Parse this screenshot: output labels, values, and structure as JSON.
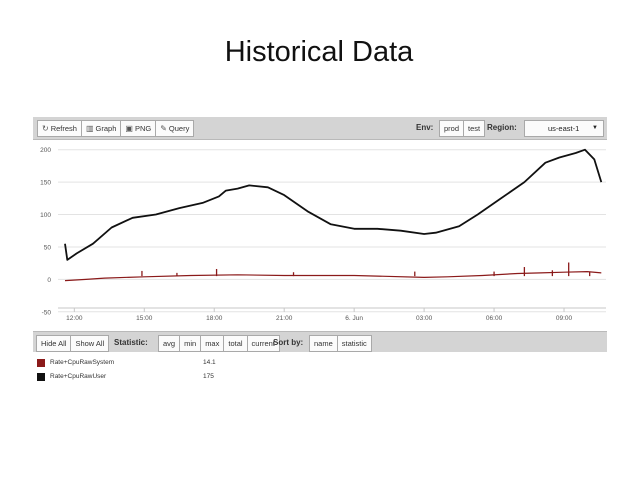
{
  "slide": {
    "title": "Historical Data"
  },
  "toolbar": {
    "refresh_label": "Refresh",
    "graph_label": "Graph",
    "png_label": "PNG",
    "query_label": "Query",
    "env_label": "Env:",
    "env_options": [
      "prod",
      "test"
    ],
    "region_label": "Region:",
    "region_value": "us-east-1"
  },
  "bottombar": {
    "hide_all": "Hide All",
    "show_all": "Show All",
    "statistic_label": "Statistic:",
    "statistic_options": [
      "avg",
      "min",
      "max",
      "total",
      "current"
    ],
    "sortby_label": "Sort by:",
    "sort_options": [
      "name",
      "statistic"
    ]
  },
  "legend": [
    {
      "name": "Rate+CpuRawSystem",
      "value": "14.1",
      "color": "#8b1a1a"
    },
    {
      "name": "Rate+CpuRawUser",
      "value": "175",
      "color": "#111111"
    }
  ],
  "chart_data": {
    "type": "line",
    "title": "",
    "xlabel": "",
    "ylabel": "",
    "x_ticks": [
      "12:00",
      "15:00",
      "18:00",
      "21:00",
      "6. Jun",
      "03:00",
      "06:00",
      "09:00"
    ],
    "x_tick_hours": [
      12,
      15,
      18,
      21,
      24,
      27,
      30,
      33
    ],
    "xlim_hours": [
      11.3,
      34.8
    ],
    "y_ticks": [
      "200",
      "150",
      "100",
      "50",
      "0",
      "-50"
    ],
    "ylim": [
      -55,
      215
    ],
    "grid": true,
    "series": [
      {
        "name": "Rate+CpuRawUser",
        "color": "#111111",
        "points": [
          [
            11.6,
            55
          ],
          [
            11.7,
            30
          ],
          [
            12.1,
            40
          ],
          [
            12.8,
            55
          ],
          [
            13.6,
            80
          ],
          [
            14.5,
            95
          ],
          [
            15.5,
            100
          ],
          [
            16.5,
            110
          ],
          [
            17.5,
            118
          ],
          [
            18.2,
            128
          ],
          [
            18.5,
            137
          ],
          [
            19.0,
            140
          ],
          [
            19.5,
            145
          ],
          [
            20.3,
            142
          ],
          [
            21.0,
            130
          ],
          [
            22.0,
            105
          ],
          [
            23.0,
            85
          ],
          [
            24.0,
            78
          ],
          [
            25.0,
            78
          ],
          [
            26.0,
            75
          ],
          [
            27.0,
            70
          ],
          [
            27.5,
            72
          ],
          [
            28.5,
            82
          ],
          [
            29.3,
            100
          ],
          [
            30.3,
            125
          ],
          [
            31.3,
            150
          ],
          [
            32.2,
            180
          ],
          [
            32.8,
            188
          ],
          [
            33.5,
            195
          ],
          [
            33.9,
            200
          ],
          [
            34.3,
            185
          ],
          [
            34.6,
            150
          ]
        ]
      },
      {
        "name": "Rate+CpuRawSystem",
        "color": "#8b1a1a",
        "points": [
          [
            11.6,
            -2
          ],
          [
            12.5,
            0
          ],
          [
            13.3,
            2
          ],
          [
            15.0,
            4
          ],
          [
            17.0,
            6
          ],
          [
            19.0,
            7
          ],
          [
            21.0,
            6
          ],
          [
            23.0,
            6
          ],
          [
            24.0,
            6
          ],
          [
            25.0,
            5
          ],
          [
            27.0,
            3
          ],
          [
            28.0,
            4
          ],
          [
            29.5,
            6
          ],
          [
            31.0,
            9
          ],
          [
            32.0,
            10
          ],
          [
            33.0,
            11
          ],
          [
            34.0,
            12
          ],
          [
            34.6,
            10
          ]
        ],
        "spikes": [
          [
            14.9,
            13
          ],
          [
            16.4,
            10
          ],
          [
            18.1,
            16
          ],
          [
            21.4,
            11
          ],
          [
            26.6,
            12
          ],
          [
            30.0,
            12
          ],
          [
            31.3,
            19
          ],
          [
            32.5,
            14
          ],
          [
            33.2,
            26
          ],
          [
            34.1,
            12
          ]
        ]
      }
    ]
  }
}
